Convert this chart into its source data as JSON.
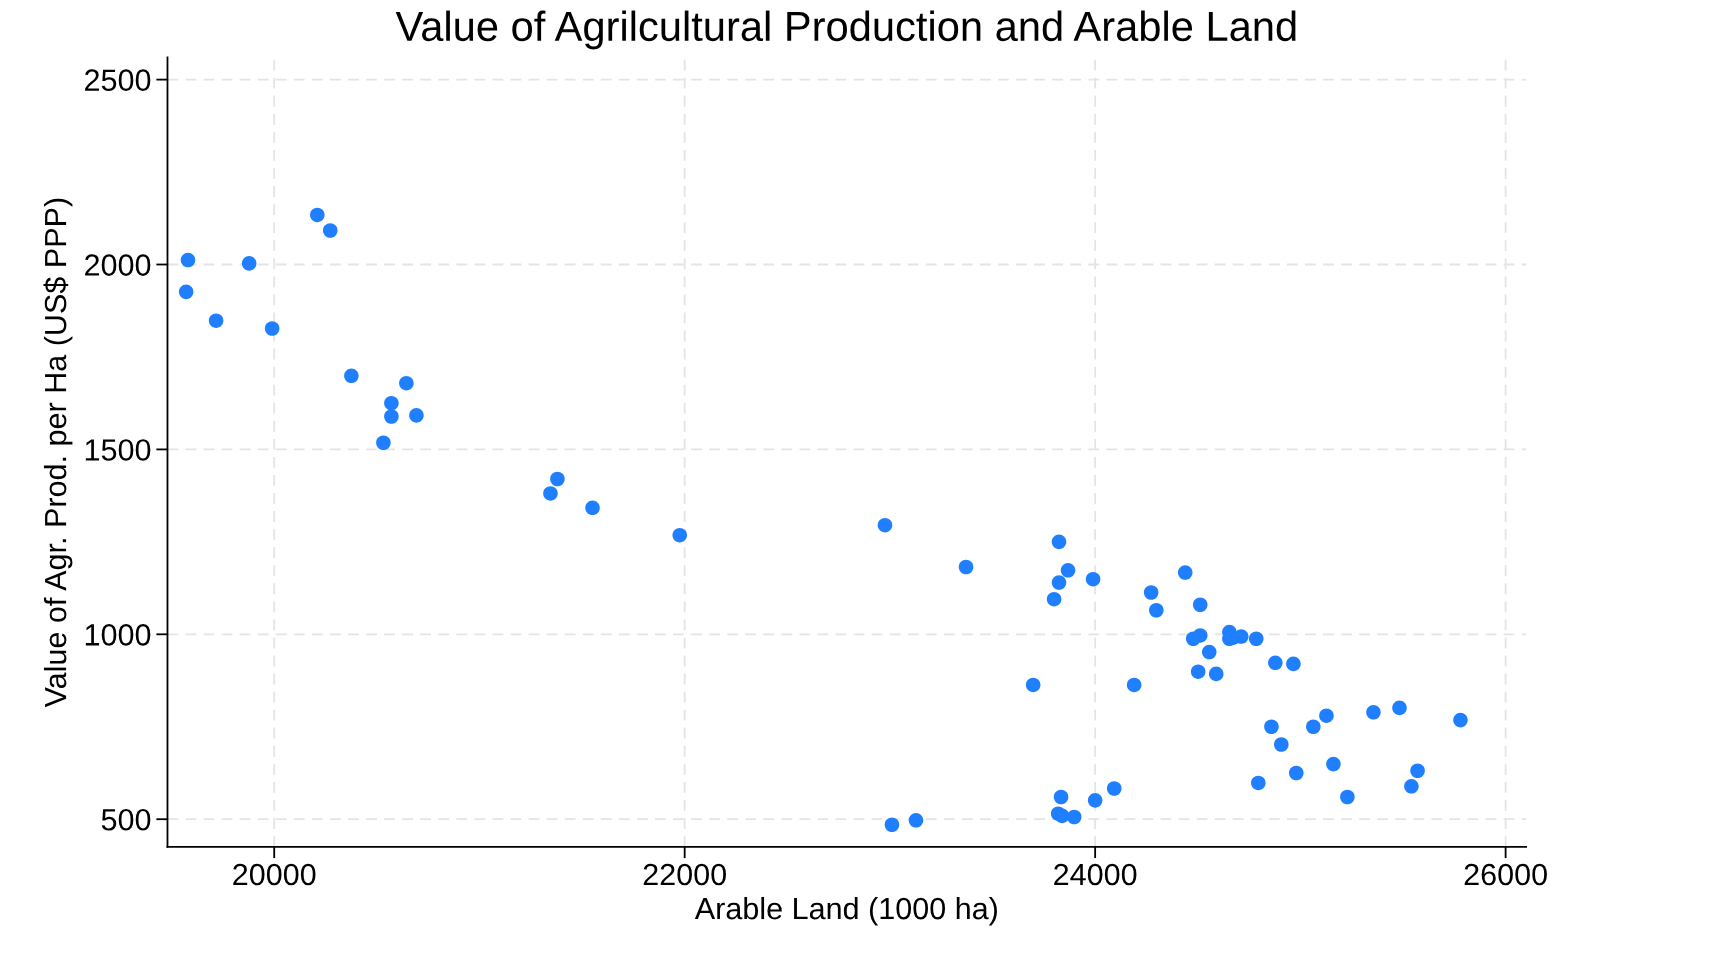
{
  "chart_data": {
    "type": "scatter",
    "title": "Value of Agrilcultural Production and Arable Land",
    "xlabel": "Arable Land (1000 ha)",
    "ylabel": "Value of Agr. Prod. per Ha (US$ PPP)",
    "x": [
      19580,
      19571,
      19878,
      19717,
      19990,
      20210,
      20273,
      20376,
      20644,
      20571,
      20571,
      20693,
      20532,
      21346,
      21380,
      21551,
      21976,
      22976,
      23371,
      23824,
      23868,
      23824,
      23800,
      23990,
      23698,
      23010,
      23127,
      23834,
      23820,
      23839,
      23898,
      24000,
      24093,
      24273,
      24298,
      24439,
      24512,
      24190,
      24478,
      24512,
      24556,
      24502,
      24590,
      24654,
      24654,
      24673,
      24712,
      24785,
      24878,
      24966,
      24859,
      24907,
      25063,
      25127,
      24980,
      24795,
      25161,
      25229,
      25356,
      25483,
      25541,
      25571,
      25780
    ],
    "series": [
      {
        "color": "#1f7fff",
        "values": [
          2012,
          1926,
          2003,
          1848,
          1827,
          2134,
          2092,
          1699,
          1679,
          1625,
          1589,
          1592,
          1518,
          1381,
          1420,
          1342,
          1268,
          1295,
          1182,
          1250,
          1173,
          1140,
          1095,
          1149,
          863,
          485,
          497,
          560,
          515,
          509,
          506,
          551,
          583,
          1113,
          1065,
          1167,
          1080,
          863,
          988,
          997,
          952,
          899,
          893,
          1006,
          988,
          991,
          994,
          988,
          923,
          920,
          750,
          702,
          750,
          780,
          625,
          598,
          649,
          560,
          789,
          801,
          589,
          631,
          768
        ]
      }
    ],
    "xlim": [
      19480,
      26100
    ],
    "ylim": [
      425,
      2560
    ],
    "xticks": [
      20000,
      22000,
      24000,
      26000
    ],
    "yticks": [
      500,
      1000,
      1500,
      2000,
      2500
    ],
    "grid": true,
    "marker": "circle"
  }
}
